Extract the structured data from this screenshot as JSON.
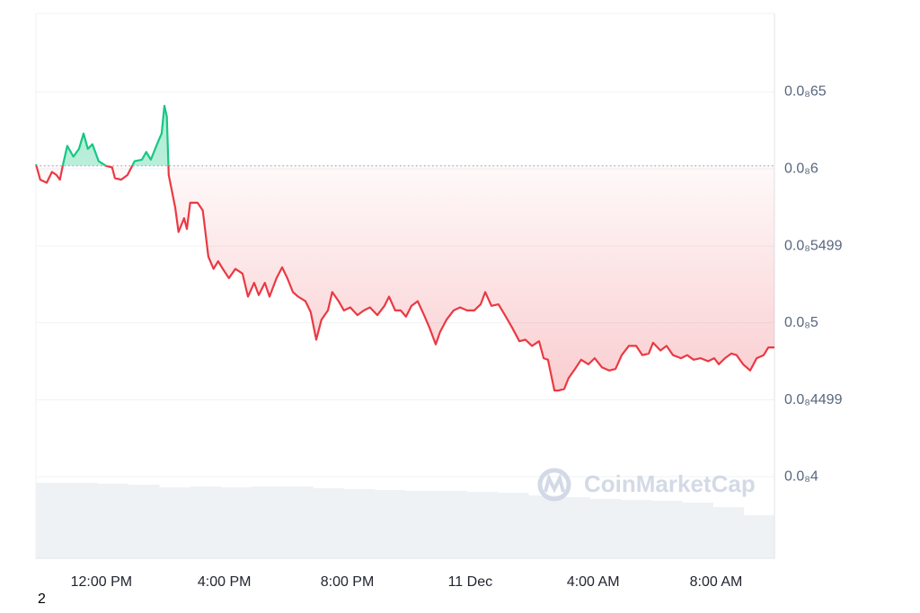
{
  "chart_data": {
    "type": "line",
    "x": [
      9.87,
      10.01,
      10.22,
      10.39,
      10.54,
      10.65,
      10.74,
      10.89,
      11.09,
      11.27,
      11.42,
      11.56,
      11.71,
      11.91,
      12.15,
      12.35,
      12.44,
      12.64,
      12.85,
      13.08,
      13.32,
      13.46,
      13.61,
      13.81,
      13.96,
      14.05,
      14.13,
      14.19,
      14.4,
      14.51,
      14.69,
      14.78,
      14.89,
      15.13,
      15.3,
      15.48,
      15.65,
      15.8,
      15.95,
      16.15,
      16.36,
      16.59,
      16.77,
      16.97,
      17.12,
      17.32,
      17.47,
      17.7,
      17.88,
      18.05,
      18.23,
      18.4,
      18.64,
      18.81,
      18.99,
      19.16,
      19.37,
      19.51,
      19.72,
      19.89,
      20.1,
      20.33,
      20.54,
      20.74,
      20.98,
      21.21,
      21.36,
      21.56,
      21.74,
      21.91,
      22.09,
      22.29,
      22.5,
      22.67,
      22.88,
      23.02,
      23.23,
      23.46,
      23.67,
      23.9,
      24.13,
      24.34,
      24.49,
      24.69,
      24.92,
      25.13,
      25.36,
      25.6,
      25.8,
      26.01,
      26.24,
      26.39,
      26.53,
      26.74,
      26.88,
      27.06,
      27.2,
      27.41,
      27.61,
      27.85,
      28.05,
      28.29,
      28.52,
      28.73,
      28.93,
      29.16,
      29.4,
      29.6,
      29.81,
      29.95,
      30.19,
      30.39,
      30.6,
      30.86,
      31.06,
      31.27,
      31.5,
      31.74,
      31.94,
      32.09,
      32.29,
      32.5,
      32.67,
      32.88,
      33.11,
      33.32,
      33.55,
      33.7,
      33.9
    ],
    "series": [
      {
        "color_above": "#16c784",
        "color_below": "#ea3943",
        "values": [
          6.03e-10,
          5.93e-10,
          5.91e-10,
          5.98e-10,
          5.96e-10,
          5.93e-10,
          6.02e-10,
          6.15e-10,
          6.08e-10,
          6.13e-10,
          6.23e-10,
          6.13e-10,
          6.16e-10,
          6.05e-10,
          6.02e-10,
          6.01e-10,
          5.94e-10,
          5.93e-10,
          5.96e-10,
          6.05e-10,
          6.06e-10,
          6.11e-10,
          6.06e-10,
          6.16e-10,
          6.23e-10,
          6.41e-10,
          6.34e-10,
          5.96e-10,
          5.75e-10,
          5.59e-10,
          5.68e-10,
          5.61e-10,
          5.78e-10,
          5.78e-10,
          5.73e-10,
          5.43e-10,
          5.35e-10,
          5.4e-10,
          5.35e-10,
          5.29e-10,
          5.35e-10,
          5.32e-10,
          5.17e-10,
          5.26e-10,
          5.18e-10,
          5.26e-10,
          5.17e-10,
          5.29e-10,
          5.36e-10,
          5.29e-10,
          5.2e-10,
          5.17e-10,
          5.14e-10,
          5.07e-10,
          4.89e-10,
          5.02e-10,
          5.08e-10,
          5.2e-10,
          5.14e-10,
          5.08e-10,
          5.1e-10,
          5.05e-10,
          5.08e-10,
          5.1e-10,
          5.05e-10,
          5.11e-10,
          5.17e-10,
          5.08e-10,
          5.08e-10,
          5.04e-10,
          5.11e-10,
          5.14e-10,
          5.05e-10,
          4.97e-10,
          4.86e-10,
          4.94e-10,
          5.02e-10,
          5.08e-10,
          5.1e-10,
          5.08e-10,
          5.08e-10,
          5.12e-10,
          5.2e-10,
          5.11e-10,
          5.12e-10,
          5.05e-10,
          4.97e-10,
          4.88e-10,
          4.89e-10,
          4.85e-10,
          4.88e-10,
          4.77e-10,
          4.76e-10,
          4.56e-10,
          4.56e-10,
          4.57e-10,
          4.64e-10,
          4.7e-10,
          4.76e-10,
          4.73e-10,
          4.77e-10,
          4.71e-10,
          4.69e-10,
          4.7e-10,
          4.79e-10,
          4.85e-10,
          4.85e-10,
          4.79e-10,
          4.8e-10,
          4.87e-10,
          4.82e-10,
          4.85e-10,
          4.79e-10,
          4.77e-10,
          4.79e-10,
          4.76e-10,
          4.77e-10,
          4.75e-10,
          4.77e-10,
          4.73e-10,
          4.77e-10,
          4.8e-10,
          4.79e-10,
          4.73e-10,
          4.69e-10,
          4.77e-10,
          4.79e-10,
          4.84e-10,
          4.84e-10
        ]
      }
    ],
    "baseline": 6.02e-10,
    "xlim": [
      9.87,
      33.9
    ],
    "xticks": [
      {
        "value": 12,
        "label": "12:00 PM"
      },
      {
        "value": 16,
        "label": "4:00 PM"
      },
      {
        "value": 20,
        "label": "8:00 PM"
      },
      {
        "value": 24,
        "label": "11 Dec"
      },
      {
        "value": 28,
        "label": "4:00 AM"
      },
      {
        "value": 32,
        "label": "8:00 AM"
      }
    ],
    "ylim": [
      3.47e-10,
      7.01e-10
    ],
    "yticks": [
      {
        "value": 6.5e-10,
        "label": "0.0₈65"
      },
      {
        "value": 6e-10,
        "label": "0.0₈6"
      },
      {
        "value": 5.499e-10,
        "label": "0.0₈5499"
      },
      {
        "value": 5e-10,
        "label": "0.0₈5"
      },
      {
        "value": 4.499e-10,
        "label": "0.0₈4499"
      },
      {
        "value": 4e-10,
        "label": "0.0₈4"
      }
    ],
    "grid": true,
    "watermark": "CoinMarketCap",
    "volume": {
      "color": "#eff2f5",
      "ylim": [
        0,
        100
      ],
      "values": [
        84,
        84,
        83,
        82,
        79,
        80,
        79,
        80,
        80,
        78,
        77,
        76,
        75,
        75,
        74,
        73,
        70,
        68,
        66,
        65,
        64,
        62,
        57,
        48
      ]
    }
  },
  "footnote": "2"
}
